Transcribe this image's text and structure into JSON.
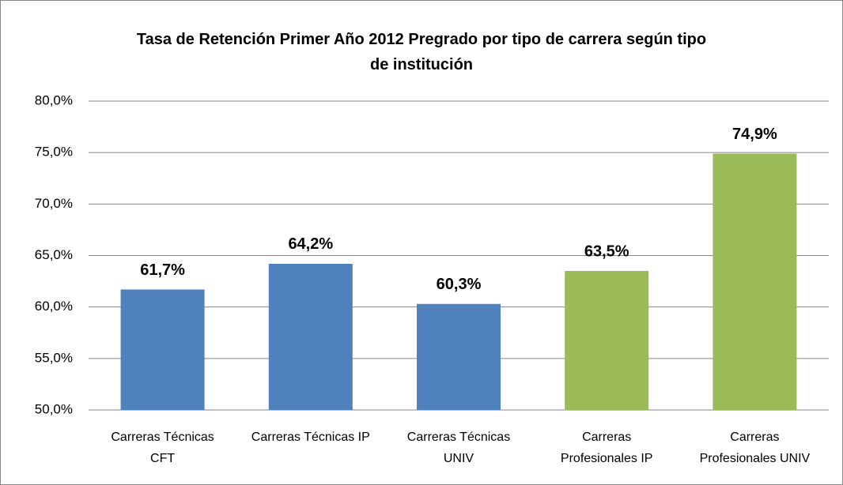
{
  "chart_data": {
    "type": "bar",
    "title": "Tasa de Retención Primer Año 2012 Pregrado por tipo de carrera según tipo\nde institución",
    "categories": [
      "Carreras Técnicas\nCFT",
      "Carreras Técnicas IP",
      "Carreras Técnicas\nUNIV",
      "Carreras\nProfesionales IP",
      "Carreras\nProfesionales UNIV"
    ],
    "values": [
      61.7,
      64.2,
      60.3,
      63.5,
      74.9
    ],
    "value_labels": [
      "61,7%",
      "64,2%",
      "60,3%",
      "63,5%",
      "74,9%"
    ],
    "colors": [
      "#4f81bd",
      "#4f81bd",
      "#4f81bd",
      "#9bbb59",
      "#9bbb59"
    ],
    "ylim": [
      50,
      80
    ],
    "yticks": [
      {
        "value": 50,
        "label": "50,0%"
      },
      {
        "value": 55,
        "label": "55,0%"
      },
      {
        "value": 60,
        "label": "60,0%"
      },
      {
        "value": 65,
        "label": "65,0%"
      },
      {
        "value": 70,
        "label": "70,0%"
      },
      {
        "value": 75,
        "label": "75,0%"
      },
      {
        "value": 80,
        "label": "80,0%"
      }
    ],
    "grid": true
  }
}
